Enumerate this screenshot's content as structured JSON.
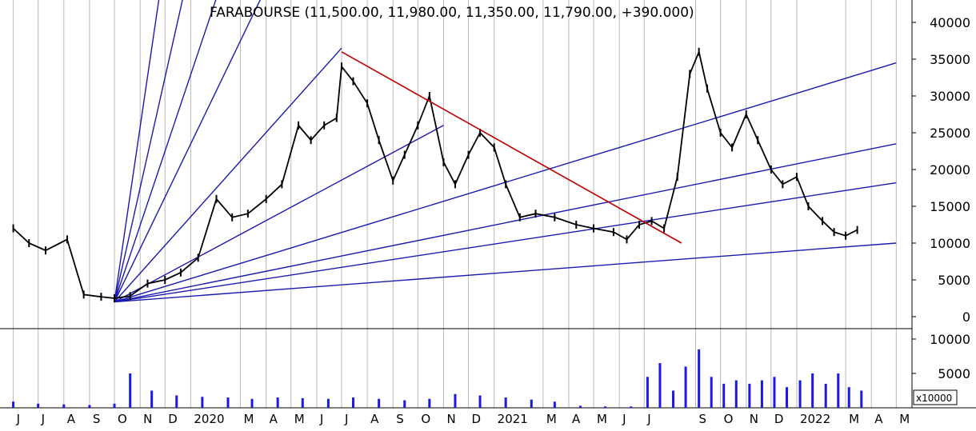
{
  "chart_data": {
    "type": "line",
    "title": "FARABOURSE (11,500.00, 11,980.00, 11,350.00, 11,790.00, +390.000)",
    "price_panel": {
      "ylim": [
        -1000,
        42000
      ],
      "yticks": [
        0,
        5000,
        10000,
        15000,
        20000,
        25000,
        30000,
        35000,
        40000
      ],
      "grid": true,
      "series": [
        {
          "color": "#000000",
          "x": [
            "2019-06-01",
            "2019-06-20",
            "2019-07-10",
            "2019-08-05",
            "2019-08-25",
            "2019-09-15",
            "2019-10-01",
            "2019-10-20",
            "2019-11-10",
            "2019-12-01",
            "2019-12-20",
            "2020-01-10",
            "2020-02-01",
            "2020-02-20",
            "2020-03-10",
            "2020-04-01",
            "2020-04-20",
            "2020-05-10",
            "2020-05-25",
            "2020-06-10",
            "2020-06-25",
            "2020-07-01",
            "2020-07-15",
            "2020-08-01",
            "2020-08-15",
            "2020-09-01",
            "2020-09-15",
            "2020-10-01",
            "2020-10-15",
            "2020-11-01",
            "2020-11-15",
            "2020-12-01",
            "2020-12-15",
            "2021-01-01",
            "2021-01-15",
            "2021-02-01",
            "2021-02-20",
            "2021-03-15",
            "2021-04-10",
            "2021-05-01",
            "2021-05-25",
            "2021-06-10",
            "2021-06-25",
            "2021-07-10",
            "2021-07-25",
            "2021-08-10",
            "2021-08-25",
            "2021-09-05",
            "2021-09-15",
            "2021-10-01",
            "2021-10-15",
            "2021-11-01",
            "2021-11-15",
            "2021-12-01",
            "2021-12-15",
            "2022-01-01",
            "2022-01-15",
            "2022-02-01",
            "2022-02-15",
            "2022-03-01",
            "2022-03-15"
          ],
          "y": [
            12000,
            10000,
            9000,
            10500,
            3000,
            2700,
            2500,
            2800,
            4500,
            5000,
            6000,
            8000,
            16000,
            13500,
            14000,
            16000,
            18000,
            26000,
            24000,
            26000,
            27000,
            34000,
            32000,
            29000,
            24000,
            18500,
            22000,
            26000,
            30000,
            21000,
            18000,
            22000,
            25000,
            23000,
            18000,
            13500,
            14000,
            13500,
            12500,
            12000,
            11500,
            10500,
            12500,
            13000,
            12000,
            19000,
            33000,
            36000,
            31000,
            25000,
            23000,
            27500,
            24000,
            20000,
            18000,
            19000,
            15000,
            13000,
            11500,
            11000,
            11790
          ]
        }
      ],
      "overlay_lines": [
        {
          "name": "",
          "color": "#c00000",
          "from": [
            "2020-07-01",
            36000
          ],
          "to": [
            "2021-08-15",
            10000
          ]
        }
      ]
    },
    "volume_panel": {
      "ylim": [
        0,
        11000
      ],
      "yticks": [
        5000,
        10000
      ],
      "unit_label": "x10000",
      "grid": true,
      "x": [
        "2019-06-01",
        "2019-07-01",
        "2019-08-01",
        "2019-09-01",
        "2019-10-01",
        "2019-10-20",
        "2019-11-15",
        "2019-12-15",
        "2020-01-15",
        "2020-02-15",
        "2020-03-15",
        "2020-04-15",
        "2020-05-15",
        "2020-06-15",
        "2020-07-15",
        "2020-08-15",
        "2020-09-15",
        "2020-10-15",
        "2020-11-15",
        "2020-12-15",
        "2021-01-15",
        "2021-02-15",
        "2021-03-15",
        "2021-04-15",
        "2021-05-15",
        "2021-06-15",
        "2021-07-05",
        "2021-07-20",
        "2021-08-05",
        "2021-08-20",
        "2021-09-05",
        "2021-09-20",
        "2021-10-05",
        "2021-10-20",
        "2021-11-05",
        "2021-11-20",
        "2021-12-05",
        "2021-12-20",
        "2022-01-05",
        "2022-01-20",
        "2022-02-05",
        "2022-02-20",
        "2022-03-05",
        "2022-03-20"
      ],
      "values": [
        900,
        600,
        500,
        400,
        600,
        5000,
        2500,
        1800,
        1600,
        1500,
        1300,
        1500,
        1400,
        1300,
        1500,
        1300,
        1100,
        1300,
        2000,
        1800,
        1500,
        1200,
        900,
        300,
        200,
        200,
        4500,
        6500,
        2500,
        6000,
        8500,
        4500,
        3500,
        4000,
        3500,
        4000,
        4500,
        3000,
        4000,
        5000,
        3500,
        5000,
        3000,
        2500
      ]
    },
    "x_axis": {
      "ticks": [
        {
          "date": "2019-06-01",
          "label": "J"
        },
        {
          "date": "2019-07-01",
          "label": "J"
        },
        {
          "date": "2019-08-01",
          "label": "A"
        },
        {
          "date": "2019-09-01",
          "label": "S"
        },
        {
          "date": "2019-10-01",
          "label": "O"
        },
        {
          "date": "2019-11-01",
          "label": "N"
        },
        {
          "date": "2019-12-01",
          "label": "D"
        },
        {
          "date": "2020-01-01",
          "label": "2020"
        },
        {
          "date": "2020-03-01",
          "label": "M"
        },
        {
          "date": "2020-04-01",
          "label": "A"
        },
        {
          "date": "2020-05-01",
          "label": "M"
        },
        {
          "date": "2020-06-01",
          "label": "J"
        },
        {
          "date": "2020-07-01",
          "label": "J"
        },
        {
          "date": "2020-08-01",
          "label": "A"
        },
        {
          "date": "2020-09-01",
          "label": "S"
        },
        {
          "date": "2020-10-01",
          "label": "O"
        },
        {
          "date": "2020-11-01",
          "label": "N"
        },
        {
          "date": "2020-12-01",
          "label": "D"
        },
        {
          "date": "2021-01-01",
          "label": "2021"
        },
        {
          "date": "2021-03-01",
          "label": "M"
        },
        {
          "date": "2021-04-01",
          "label": "A"
        },
        {
          "date": "2021-05-01",
          "label": "M"
        },
        {
          "date": "2021-06-01",
          "label": "J"
        },
        {
          "date": "2021-07-01",
          "label": "J"
        },
        {
          "date": "2021-09-01",
          "label": "S"
        },
        {
          "date": "2021-10-01",
          "label": "O"
        },
        {
          "date": "2021-11-01",
          "label": "N"
        },
        {
          "date": "2021-12-01",
          "label": "D"
        },
        {
          "date": "2022-01-01",
          "label": "2022"
        },
        {
          "date": "2022-03-01",
          "label": "M"
        },
        {
          "date": "2022-04-01",
          "label": "A"
        },
        {
          "date": "2022-05-01",
          "label": "M"
        }
      ]
    },
    "fan_lines": {
      "color": "#1a1ab0",
      "origin": [
        "2019-10-01",
        2000
      ],
      "through": [
        [
          "2019-11-30",
          48000
        ],
        [
          "2020-01-01",
          48000
        ],
        [
          "2020-02-15",
          48000
        ],
        [
          "2020-04-15",
          48000
        ],
        [
          "2020-07-01",
          36500
        ],
        [
          "2020-11-01",
          26000
        ],
        [
          "2022-05-01",
          34500
        ],
        [
          "2022-05-01",
          23500
        ],
        [
          "2022-05-01",
          18200
        ],
        [
          "2022-05-01",
          10000
        ]
      ]
    },
    "colors": {
      "price": "#000000",
      "volume": "#1a1ae6",
      "fan": "#1a1ab0",
      "trendline": "#c00000",
      "grid": "#b8b8b8"
    }
  }
}
